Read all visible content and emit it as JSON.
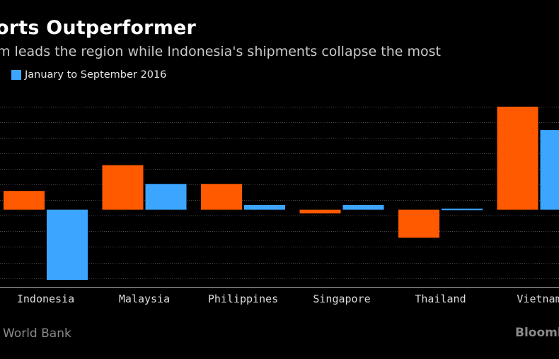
{
  "title": "orts Outperformer",
  "subtitle": "m leads the region while Indonesia's shipments collapse the most",
  "legend": {
    "series_label": "January to September 2016"
  },
  "source": "World Bank",
  "brand": "Bloomb",
  "colors": {
    "series_a": "#ff5a00",
    "series_b": "#3ca5ff",
    "grid": "#4a4a4a",
    "axis": "#9a9a9a"
  },
  "chart_data": {
    "type": "bar",
    "title": "orts Outperformer",
    "xlabel": "",
    "ylabel": "",
    "categories": [
      "Indonesia",
      "Malaysia",
      "Philippines",
      "Singapore",
      "Thailand",
      "Vietnam"
    ],
    "series": [
      {
        "name": "",
        "values": [
          0.4,
          0.95,
          0.55,
          -0.08,
          -0.6,
          2.2
        ]
      },
      {
        "name": "January to September 2016",
        "values": [
          -1.5,
          0.55,
          0.1,
          0.1,
          0.02,
          1.7
        ]
      }
    ],
    "ylim": [
      -1.65,
      2.35
    ],
    "grid_step": 0.333,
    "grid": true
  }
}
